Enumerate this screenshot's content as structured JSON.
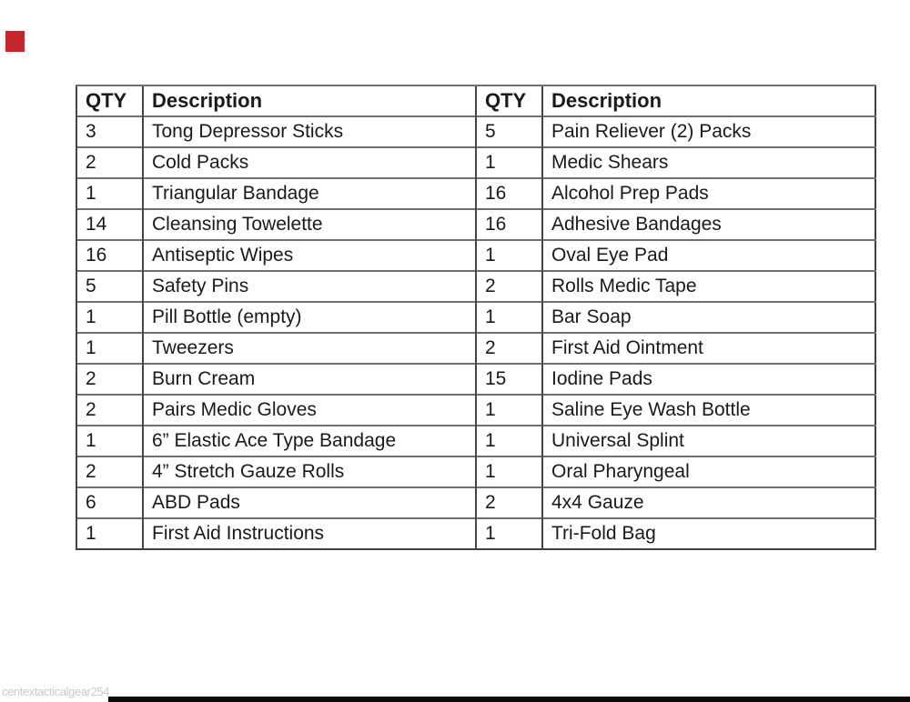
{
  "colors": {
    "page_bg": "#ffffff",
    "text": "#1a1a1a",
    "table_outer_border": "#3f3f3f",
    "col_line": "#454545",
    "row_line": "#6f6f6f",
    "red_square": "#c5262c",
    "watermark": "#c9c9c9",
    "bottom_bar": "#0a0a0a"
  },
  "watermark": {
    "text": "centextacticalgear254"
  },
  "table": {
    "headers": [
      "QTY",
      "Description",
      "QTY",
      "Description"
    ],
    "rows": [
      {
        "qty1": "3",
        "desc1": "Tong Depressor Sticks",
        "qty2": "5",
        "desc2": "Pain Reliever (2) Packs"
      },
      {
        "qty1": "2",
        "desc1": "Cold Packs",
        "qty2": "1",
        "desc2": "Medic Shears"
      },
      {
        "qty1": "1",
        "desc1": "Triangular Bandage",
        "qty2": "16",
        "desc2": "Alcohol Prep Pads"
      },
      {
        "qty1": "14",
        "desc1": "Cleansing Towelette",
        "qty2": "16",
        "desc2": "Adhesive Bandages"
      },
      {
        "qty1": "16",
        "desc1": "Antiseptic Wipes",
        "qty2": "1",
        "desc2": "Oval Eye Pad"
      },
      {
        "qty1": "5",
        "desc1": "Safety Pins",
        "qty2": "2",
        "desc2": "Rolls Medic Tape"
      },
      {
        "qty1": "1",
        "desc1": "Pill Bottle (empty)",
        "qty2": "1",
        "desc2": "Bar Soap"
      },
      {
        "qty1": "1",
        "desc1": "Tweezers",
        "qty2": "2",
        "desc2": "First Aid Ointment"
      },
      {
        "qty1": "2",
        "desc1": "Burn Cream",
        "qty2": "15",
        "desc2": "Iodine Pads"
      },
      {
        "qty1": "2",
        "desc1": "Pairs Medic Gloves",
        "qty2": "1",
        "desc2": "Saline Eye Wash Bottle"
      },
      {
        "qty1": "1",
        "desc1": "6” Elastic Ace Type Bandage",
        "qty2": "1",
        "desc2": "Universal Splint"
      },
      {
        "qty1": "2",
        "desc1": "4” Stretch Gauze Rolls",
        "qty2": "1",
        "desc2": "Oral Pharyngeal"
      },
      {
        "qty1": "6",
        "desc1": "ABD Pads",
        "qty2": "2",
        "desc2": "4x4 Gauze"
      },
      {
        "qty1": "1",
        "desc1": "First Aid Instructions",
        "qty2": "1",
        "desc2": "Tri-Fold Bag"
      }
    ]
  }
}
